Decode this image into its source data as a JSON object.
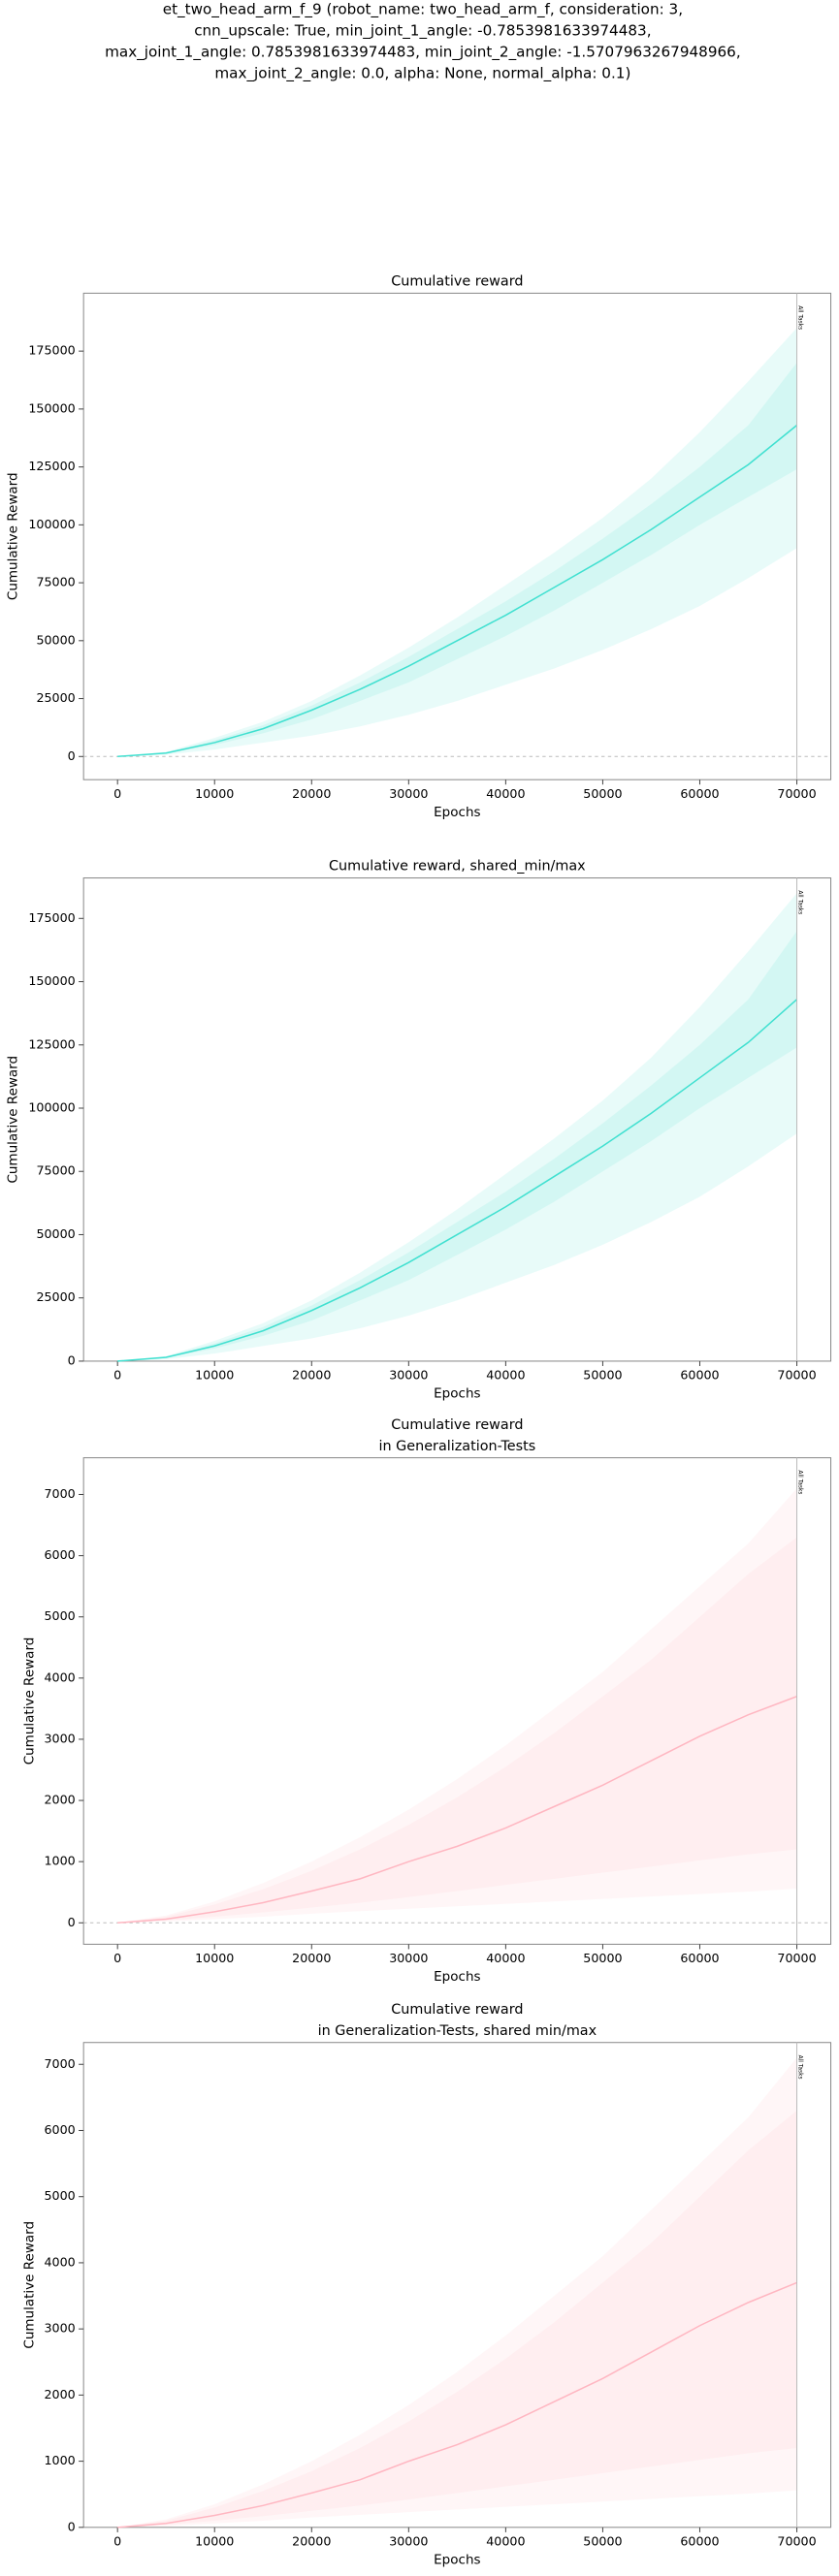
{
  "title": [
    "et_two_head_arm_f_9 (robot_name: two_head_arm_f, consideration: 3,",
    "cnn_upscale: True, min_joint_1_angle: -0.7853981633974483,",
    "max_joint_1_angle: 0.7853981633974483, min_joint_2_angle: -1.5707963267948966,",
    "max_joint_2_angle: 0.0, alpha: None, normal_alpha: 0.1)"
  ],
  "chart_data": [
    {
      "type": "line",
      "title": [
        "Cumulative reward"
      ],
      "xlabel": "Epochs",
      "ylabel": "Cumulative Reward",
      "x": [
        0,
        5000,
        10000,
        15000,
        20000,
        25000,
        30000,
        35000,
        40000,
        45000,
        50000,
        55000,
        60000,
        65000,
        70000
      ],
      "series": [
        {
          "color": "#40e0d0",
          "values": [
            0,
            1500,
            6000,
            12000,
            20000,
            29000,
            39000,
            50000,
            61000,
            73000,
            85000,
            98000,
            112000,
            126000,
            143000
          ],
          "max": [
            0,
            2000,
            8000,
            15000,
            24000,
            35000,
            47000,
            60000,
            74000,
            88000,
            103000,
            120000,
            140000,
            162000,
            185000
          ],
          "min": [
            0,
            800,
            3000,
            6000,
            9000,
            13000,
            18000,
            24000,
            31000,
            38000,
            46000,
            55000,
            65000,
            77000,
            90000
          ],
          "upper": [
            0,
            1800,
            7000,
            13500,
            22000,
            32000,
            43000,
            55000,
            67000,
            80000,
            94000,
            109000,
            125000,
            143000,
            170000
          ],
          "lower": [
            0,
            1200,
            5000,
            10000,
            16000,
            24000,
            32000,
            42000,
            52000,
            63000,
            75000,
            87000,
            100000,
            112000,
            124000
          ]
        }
      ],
      "xlim": [
        -3500,
        73500
      ],
      "ylim": [
        -10000,
        200000
      ],
      "xticks": [
        0,
        10000,
        20000,
        30000,
        40000,
        50000,
        60000,
        70000
      ],
      "yticks": [
        0,
        25000,
        50000,
        75000,
        100000,
        125000,
        150000,
        175000
      ],
      "vline": 70000,
      "annotation": "All Tasks",
      "hline": 0
    },
    {
      "type": "line",
      "title": [
        "Cumulative reward, shared_min/max"
      ],
      "xlabel": "Epochs",
      "ylabel": "Cumulative Reward",
      "x": [
        0,
        5000,
        10000,
        15000,
        20000,
        25000,
        30000,
        35000,
        40000,
        45000,
        50000,
        55000,
        60000,
        65000,
        70000
      ],
      "series": [
        {
          "color": "#40e0d0",
          "values": [
            0,
            1500,
            6000,
            12000,
            20000,
            29000,
            39000,
            50000,
            61000,
            73000,
            85000,
            98000,
            112000,
            126000,
            143000
          ],
          "max": [
            0,
            2000,
            8000,
            15000,
            24000,
            35000,
            47000,
            60000,
            74000,
            88000,
            103000,
            120000,
            140000,
            162000,
            185000
          ],
          "min": [
            0,
            800,
            3000,
            6000,
            9000,
            13000,
            18000,
            24000,
            31000,
            38000,
            46000,
            55000,
            65000,
            77000,
            90000
          ],
          "upper": [
            0,
            1800,
            7000,
            13500,
            22000,
            32000,
            43000,
            55000,
            67000,
            80000,
            94000,
            109000,
            125000,
            143000,
            170000
          ],
          "lower": [
            0,
            1200,
            5000,
            10000,
            16000,
            24000,
            32000,
            42000,
            52000,
            63000,
            75000,
            87000,
            100000,
            112000,
            124000
          ]
        }
      ],
      "xlim": [
        -3500,
        73500
      ],
      "ylim": [
        0,
        191000
      ],
      "xticks": [
        0,
        10000,
        20000,
        30000,
        40000,
        50000,
        60000,
        70000
      ],
      "yticks": [
        0,
        25000,
        50000,
        75000,
        100000,
        125000,
        150000,
        175000
      ],
      "vline": 70000,
      "annotation": "All Tasks"
    },
    {
      "type": "line",
      "title": [
        "Cumulative reward",
        "in Generalization-Tests"
      ],
      "xlabel": "Epochs",
      "ylabel": "Cumulative Reward",
      "x": [
        0,
        5000,
        10000,
        15000,
        20000,
        25000,
        30000,
        35000,
        40000,
        45000,
        50000,
        55000,
        60000,
        65000,
        70000
      ],
      "series": [
        {
          "color": "#ffb6c1",
          "values": [
            0,
            60,
            180,
            330,
            520,
            720,
            1000,
            1250,
            1550,
            1900,
            2250,
            2650,
            3050,
            3400,
            3700
          ],
          "max": [
            0,
            120,
            350,
            650,
            1000,
            1400,
            1850,
            2350,
            2900,
            3500,
            4100,
            4800,
            5500,
            6200,
            7100
          ],
          "min": [
            0,
            20,
            60,
            100,
            150,
            190,
            230,
            270,
            310,
            350,
            390,
            430,
            470,
            510,
            560
          ],
          "upper": [
            0,
            100,
            300,
            550,
            850,
            1200,
            1600,
            2050,
            2550,
            3100,
            3700,
            4300,
            5000,
            5700,
            6300
          ],
          "lower": [
            0,
            40,
            100,
            170,
            250,
            330,
            420,
            520,
            620,
            720,
            820,
            920,
            1020,
            1120,
            1200
          ]
        }
      ],
      "xlim": [
        -3500,
        73500
      ],
      "ylim": [
        -350,
        7600
      ],
      "xticks": [
        0,
        10000,
        20000,
        30000,
        40000,
        50000,
        60000,
        70000
      ],
      "yticks": [
        0,
        1000,
        2000,
        3000,
        4000,
        5000,
        6000,
        7000
      ],
      "vline": 70000,
      "annotation": "All Tasks",
      "hline": 0
    },
    {
      "type": "line",
      "title": [
        "Cumulative reward",
        "in Generalization-Tests, shared min/max"
      ],
      "xlabel": "Epochs",
      "ylabel": "Cumulative Reward",
      "x": [
        0,
        5000,
        10000,
        15000,
        20000,
        25000,
        30000,
        35000,
        40000,
        45000,
        50000,
        55000,
        60000,
        65000,
        70000
      ],
      "series": [
        {
          "color": "#ffb6c1",
          "values": [
            0,
            60,
            180,
            330,
            520,
            720,
            1000,
            1250,
            1550,
            1900,
            2250,
            2650,
            3050,
            3400,
            3700
          ],
          "max": [
            0,
            120,
            350,
            650,
            1000,
            1400,
            1850,
            2350,
            2900,
            3500,
            4100,
            4800,
            5500,
            6200,
            7100
          ],
          "min": [
            0,
            20,
            60,
            100,
            150,
            190,
            230,
            270,
            310,
            350,
            390,
            430,
            470,
            510,
            560
          ],
          "upper": [
            0,
            100,
            300,
            550,
            850,
            1200,
            1600,
            2050,
            2550,
            3100,
            3700,
            4300,
            5000,
            5700,
            6300
          ],
          "lower": [
            0,
            40,
            100,
            170,
            250,
            330,
            420,
            520,
            620,
            720,
            820,
            920,
            1020,
            1120,
            1200
          ]
        }
      ],
      "xlim": [
        -3500,
        73500
      ],
      "ylim": [
        0,
        7330
      ],
      "xticks": [
        0,
        10000,
        20000,
        30000,
        40000,
        50000,
        60000,
        70000
      ],
      "yticks": [
        0,
        1000,
        2000,
        3000,
        4000,
        5000,
        6000,
        7000
      ],
      "vline": 70000,
      "annotation": "All Tasks"
    }
  ]
}
